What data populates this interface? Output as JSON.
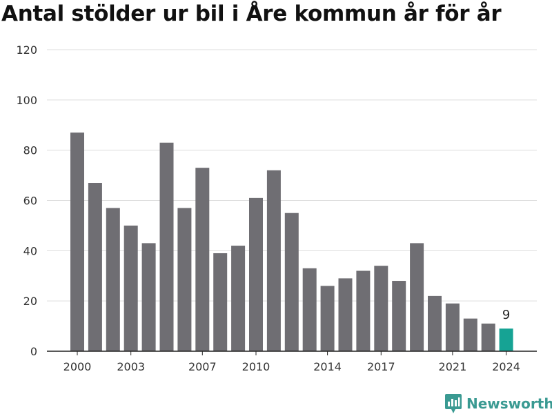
{
  "header": {
    "title": "Antal stölder ur bil i Åre kommun år för år"
  },
  "brand": {
    "name": "Newsworthy",
    "icon": "newsworthy-logo-icon"
  },
  "colors": {
    "bar": "#6f6e73",
    "highlight": "#16a394",
    "grid": "#dcdcdc",
    "axis": "#222222",
    "text": "#333333"
  },
  "chart_data": {
    "type": "bar",
    "title": "Antal stölder ur bil i Åre kommun år för år",
    "xlabel": "",
    "ylabel": "",
    "categories": [
      "2000",
      "2001",
      "2002",
      "2003",
      "2004",
      "2005",
      "2006",
      "2007",
      "2008",
      "2009",
      "2010",
      "2011",
      "2012",
      "2013",
      "2014",
      "2015",
      "2016",
      "2017",
      "2018",
      "2019",
      "2020",
      "2021",
      "2022",
      "2023",
      "2024"
    ],
    "values": [
      87,
      67,
      57,
      50,
      43,
      83,
      57,
      73,
      39,
      42,
      61,
      72,
      55,
      33,
      26,
      29,
      32,
      34,
      28,
      43,
      22,
      19,
      13,
      11,
      9
    ],
    "x_tick_labels": [
      "2000",
      "2003",
      "2007",
      "2010",
      "2014",
      "2017",
      "2021",
      "2024"
    ],
    "y_ticks": [
      0,
      20,
      40,
      60,
      80,
      100,
      120
    ],
    "ylim": [
      0,
      120
    ],
    "grid": true,
    "highlight": {
      "category": "2024",
      "label": "9"
    }
  }
}
